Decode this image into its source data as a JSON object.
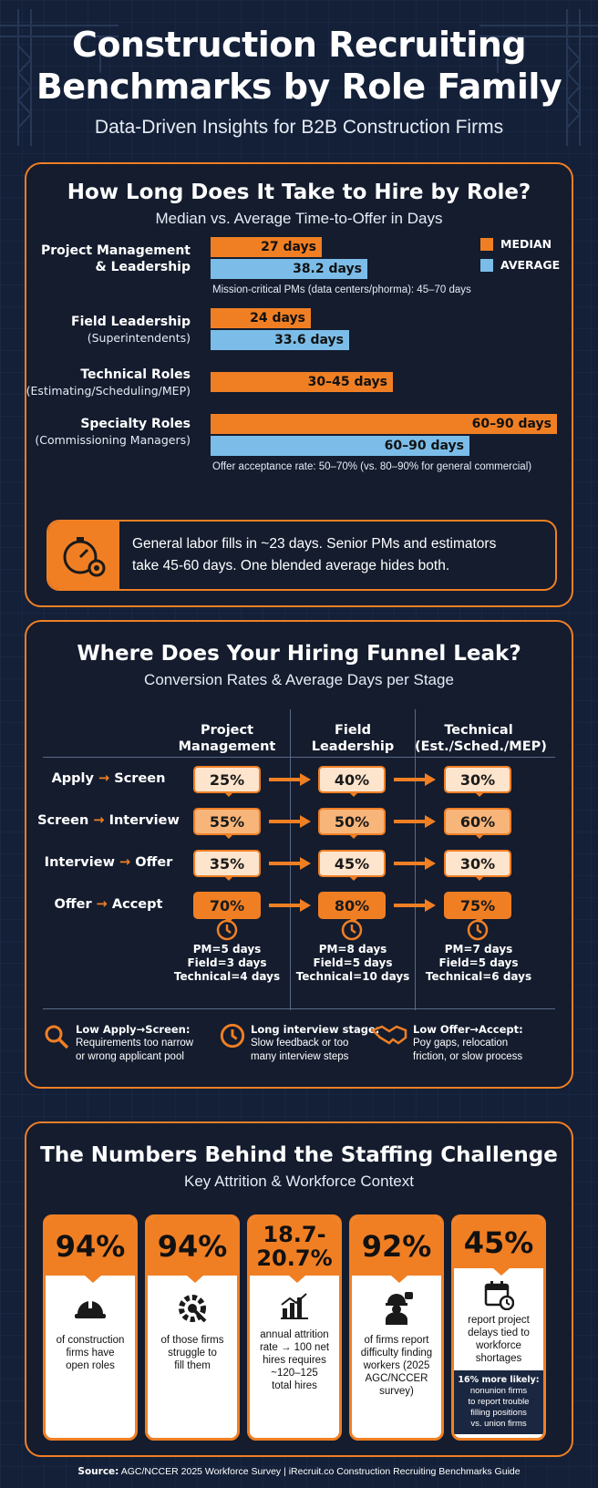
{
  "header": {
    "title_line1": "Construction Recruiting",
    "title_line2": "Benchmarks by Role Family",
    "subtitle": "Data-Driven Insights for B2B Construction Firms"
  },
  "time_to_hire": {
    "title": "How Long Does It Take to Hire by Role?",
    "subtitle": "Median vs. Average Time-to-Offer in Days",
    "legend": {
      "median": "MEDIAN",
      "average": "AVERAGE"
    },
    "roles": [
      {
        "name_line1": "Project Management",
        "name_line2": "& Leadership",
        "median_label": "27 days",
        "average_label": "38.2 days",
        "note": "Mission-critical PMs (data centers/phorma): 45–70 days"
      },
      {
        "name_line1": "Field Leadership",
        "sub": "(Superintendents)",
        "median_label": "24 days",
        "average_label": "33.6 days"
      },
      {
        "name_line1": "Technical Roles",
        "sub": "(Estimating/Scheduling/MEP)",
        "median_label": "30–45 days"
      },
      {
        "name_line1": "Specialty Roles",
        "sub": "(Commissioning Managers)",
        "median_label": "60–90 days",
        "average_label": "60–90 days",
        "note": "Offer acceptance rate: 50–70% (vs. 80–90% for general commercial)"
      }
    ],
    "callout_line1": "General labor fills in ~23 days. Senior PMs and estimators",
    "callout_line2": "take 45-60 days. One blended average hides both."
  },
  "chart_data": {
    "type": "bar",
    "categories": [
      "Project Management & Leadership",
      "Field Leadership",
      "Technical Roles",
      "Specialty Roles"
    ],
    "series": [
      {
        "name": "MEDIAN",
        "values": [
          27,
          24,
          37.5,
          75
        ]
      },
      {
        "name": "AVERAGE",
        "values": [
          38.2,
          33.6,
          null,
          75
        ]
      }
    ],
    "units": "days"
  },
  "funnel": {
    "title": "Where Does Your Hiring Funnel Leak?",
    "subtitle": "Conversion Rates & Average Days per Stage",
    "columns": [
      {
        "line1": "Project",
        "line2": "Management"
      },
      {
        "line1": "Field",
        "line2": "Leadership"
      },
      {
        "line1": "Technical",
        "line2": "(Est./Sched./MEP)"
      }
    ],
    "stages": [
      {
        "from": "Apply",
        "to": "Screen",
        "values": [
          "25%",
          "40%",
          "30%"
        ]
      },
      {
        "from": "Screen",
        "to": "Interview",
        "values": [
          "55%",
          "50%",
          "60%"
        ]
      },
      {
        "from": "Interview",
        "to": "Offer",
        "values": [
          "35%",
          "45%",
          "30%"
        ]
      },
      {
        "from": "Offer",
        "to": "Accept",
        "values": [
          "70%",
          "80%",
          "75%"
        ]
      }
    ],
    "arrow": "→",
    "days": [
      [
        "PM=5 days",
        "Field=3 days",
        "Technical=4 days"
      ],
      [
        "PM=8 days",
        "Field=5 days",
        "Technical=10 days"
      ],
      [
        "PM=7 days",
        "Field=5 days",
        "Technical=6 days"
      ]
    ],
    "issues": [
      {
        "title": "Low Apply→Screen:",
        "line1": "Requirements too narrow",
        "line2": "or wrong applicant pool"
      },
      {
        "title": "Long interview stage:",
        "line1": "Slow feedback or too",
        "line2": "many interview steps"
      },
      {
        "title": "Low Offer→Accept:",
        "line1": "Poy gaps, relocation",
        "line2": "friction, or slow process"
      }
    ]
  },
  "stats": {
    "title": "The Numbers Behind the Staffing Challenge",
    "subtitle": "Key Attrition & Workforce Context",
    "cards": [
      {
        "value": "94%",
        "icon": "hardhat-icon",
        "text": [
          "of construction",
          "firms have",
          "open roles"
        ]
      },
      {
        "value": "94%",
        "icon": "gear-wrench-icon",
        "text": [
          "of those firms",
          "struggle to",
          "fill them"
        ]
      },
      {
        "value_line1": "18.7-",
        "value_line2": "20.7%",
        "icon": "chart-icon",
        "text": [
          "annual attrition",
          "rate → 100 net",
          "hires requires",
          "~120–125",
          "total hires"
        ]
      },
      {
        "value": "92%",
        "icon": "worker-icon",
        "text": [
          "of firms report",
          "difficulty finding",
          "workers (2025",
          "AGC/NCCER",
          "survey)"
        ]
      },
      {
        "value": "45%",
        "icon": "calendar-icon",
        "text": [
          "report project",
          "delays tied to",
          "workforce",
          "shortages"
        ],
        "extra_title": "16% more likely:",
        "extra": [
          "nonunion firms",
          "to report trouble",
          "filling positions",
          "vs. union firms"
        ]
      }
    ]
  },
  "source": {
    "label": "Source:",
    "text": "AGC/NCCER 2025 Workforce Survey | iRecruit.co Construction Recruiting Benchmarks Guide"
  },
  "colors": {
    "orange": "#f07f24",
    "blue": "#7bbde8",
    "navy": "#142038"
  }
}
